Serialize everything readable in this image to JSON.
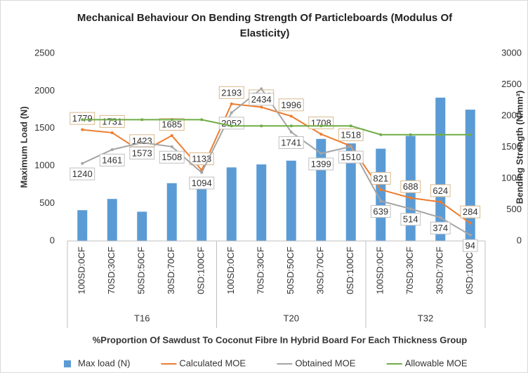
{
  "chart_data": {
    "type": "bar-line",
    "title": "Mechanical Behaviour On Bending Strength Of Particleboards (Modulus Of Elasticity)",
    "xlabel": "%Proportion Of Sawdust To Coconut Fibre In Hybrid Board For Each Thickness Group",
    "ylabel": "Maximum Load (N)",
    "y2label": "Bending Strength (N/mm²)",
    "groups": [
      {
        "name": "T16",
        "categories": [
          "100SD:0CF",
          "70SD:30CF",
          "50SD:50CF",
          "30SD:70CF",
          "0SD:100CF"
        ]
      },
      {
        "name": "T20",
        "categories": [
          "100SD:0CF",
          "70SD:30CF",
          "50SD:50CF",
          "30SD:70CF",
          "0SD:100CF"
        ]
      },
      {
        "name": "T32",
        "categories": [
          "100SD:0CF",
          "70SD:30CF",
          "30SD:70CF",
          "0SD:100CF"
        ]
      }
    ],
    "ylim": [
      0,
      2500
    ],
    "yticks": [
      0,
      500,
      1000,
      1500,
      2000,
      2500
    ],
    "y2lim": [
      0,
      3000
    ],
    "y2ticks": [
      0,
      500,
      1000,
      1500,
      2000,
      2500,
      3000
    ],
    "legend": "bottom",
    "series": [
      {
        "name": "Max load (N)",
        "kind": "bar",
        "color": "#5b9bd5",
        "values": [
          410,
          560,
          390,
          770,
          820,
          980,
          1020,
          1070,
          1360,
          1300,
          1230,
          1400,
          1910,
          1750
        ]
      },
      {
        "name": "Calculated MOE",
        "kind": "line",
        "axis": "y2",
        "color": "#ed7d31",
        "labels": "above",
        "values": [
          1779,
          1731,
          1423,
          1685,
          1133,
          2193,
          2140,
          1996,
          1708,
          1518,
          821,
          688,
          624,
          284
        ]
      },
      {
        "name": "Obtained MOE",
        "kind": "line",
        "axis": "y2",
        "color": "#a5a5a5",
        "labels": "below",
        "values": [
          1240,
          1461,
          1573,
          1508,
          1094,
          2052,
          2434,
          1741,
          1399,
          1510,
          639,
          514,
          374,
          94
        ]
      },
      {
        "name": "Allowable MOE",
        "kind": "line",
        "axis": "y2",
        "color": "#70ad47",
        "values": [
          1940,
          1940,
          1940,
          1940,
          1940,
          1840,
          1840,
          1840,
          1840,
          1840,
          1700,
          1700,
          1700,
          1700
        ]
      }
    ]
  }
}
